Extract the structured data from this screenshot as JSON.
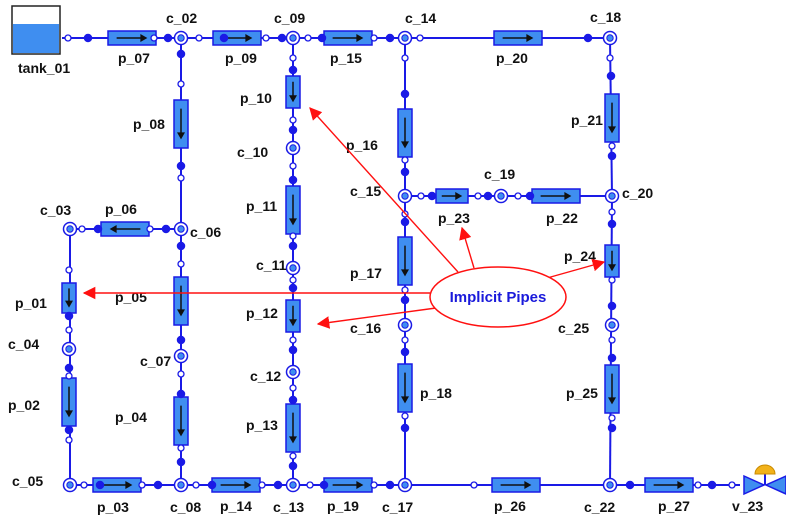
{
  "colors": {
    "pipe": "#1a1ae6",
    "pipe_fill": "#3f8ef0",
    "arrow": "#ff1010",
    "callout": "#ff1010",
    "callout_text": "#1a1adb",
    "valve_cap": "#f2b21a",
    "tank_water": "#3f8ef0"
  },
  "components": {
    "tank": "tank_01",
    "valve": "v_23",
    "pipes": [
      "p_01",
      "p_02",
      "p_03",
      "p_04",
      "p_05",
      "p_06",
      "p_07",
      "p_08",
      "p_09",
      "p_10",
      "p_11",
      "p_12",
      "p_13",
      "p_14",
      "p_15",
      "p_16",
      "p_17",
      "p_18",
      "p_19",
      "p_20",
      "p_21",
      "p_22",
      "p_23",
      "p_24",
      "p_25",
      "p_26",
      "p_27"
    ],
    "connectors": [
      "c_02",
      "c_03",
      "c_04",
      "c_05",
      "c_06",
      "c_07",
      "c_08",
      "c_09",
      "c_10",
      "c_11",
      "c_12",
      "c_13",
      "c_14",
      "c_15",
      "c_16",
      "c_17",
      "c_18",
      "c_19",
      "c_20",
      "c_22",
      "c_25"
    ]
  },
  "callout": {
    "text": "Implicit Pipes",
    "points_to": [
      "p_01",
      "p_10",
      "p_12",
      "p_23",
      "p_24"
    ]
  }
}
